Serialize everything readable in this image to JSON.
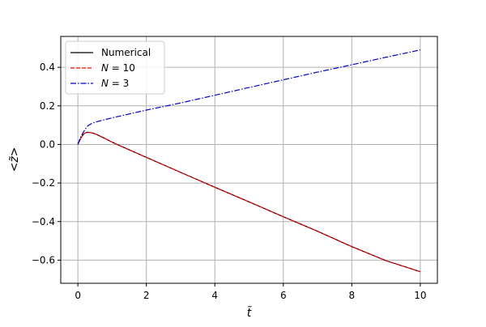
{
  "chart_data": {
    "type": "line",
    "xlabel": "t̃",
    "ylabel": "<z̃>",
    "xlim": [
      -0.5,
      10.5
    ],
    "ylim": [
      -0.72,
      0.56
    ],
    "xticks": [
      0,
      2,
      4,
      6,
      8,
      10
    ],
    "yticks": [
      -0.6,
      -0.4,
      -0.2,
      0.0,
      0.2,
      0.4
    ],
    "xtick_labels": [
      "0",
      "2",
      "4",
      "6",
      "8",
      "10"
    ],
    "ytick_labels": [
      "−0.6",
      "−0.4",
      "−0.2",
      "0.0",
      "0.2",
      "0.4"
    ],
    "grid": true,
    "legend_position": "top-left",
    "series": [
      {
        "name": "Numerical",
        "color": "#000000",
        "style": "solid",
        "x": [
          0,
          0.05,
          0.1,
          0.15,
          0.2,
          0.25,
          0.3,
          0.35,
          0.4,
          0.5,
          0.6,
          0.8,
          1.0,
          1.2,
          1.5,
          2,
          3,
          4,
          5,
          6,
          7,
          8,
          9,
          10
        ],
        "y": [
          0,
          0.02,
          0.037,
          0.05,
          0.058,
          0.062,
          0.063,
          0.062,
          0.06,
          0.055,
          0.047,
          0.03,
          0.012,
          -0.005,
          -0.028,
          -0.067,
          -0.145,
          -0.222,
          -0.298,
          -0.375,
          -0.45,
          -0.53,
          -0.603,
          -0.66
        ]
      },
      {
        "name": "N = 10",
        "name_italic": "N",
        "name_rest": " = 10",
        "color": "#ff0000",
        "style": "dashed",
        "x": [
          0,
          0.05,
          0.1,
          0.15,
          0.2,
          0.25,
          0.3,
          0.35,
          0.4,
          0.5,
          0.6,
          0.8,
          1.0,
          1.2,
          1.5,
          2,
          3,
          4,
          5,
          6,
          7,
          8,
          9,
          10
        ],
        "y": [
          0,
          0.02,
          0.037,
          0.05,
          0.058,
          0.062,
          0.063,
          0.062,
          0.06,
          0.055,
          0.047,
          0.03,
          0.012,
          -0.005,
          -0.028,
          -0.067,
          -0.145,
          -0.222,
          -0.298,
          -0.375,
          -0.45,
          -0.53,
          -0.603,
          -0.66
        ]
      },
      {
        "name": "N = 3",
        "name_italic": "N",
        "name_rest": " = 3",
        "color": "#0000cc",
        "style": "dashdot",
        "x": [
          0,
          0.05,
          0.1,
          0.15,
          0.2,
          0.25,
          0.3,
          0.4,
          0.5,
          0.7,
          1.0,
          1.5,
          2,
          3,
          4,
          5,
          6,
          7,
          8,
          9,
          10
        ],
        "y": [
          0,
          0.025,
          0.045,
          0.06,
          0.075,
          0.088,
          0.098,
          0.108,
          0.115,
          0.125,
          0.138,
          0.158,
          0.178,
          0.215,
          0.255,
          0.295,
          0.335,
          0.375,
          0.413,
          0.452,
          0.49
        ]
      }
    ]
  }
}
